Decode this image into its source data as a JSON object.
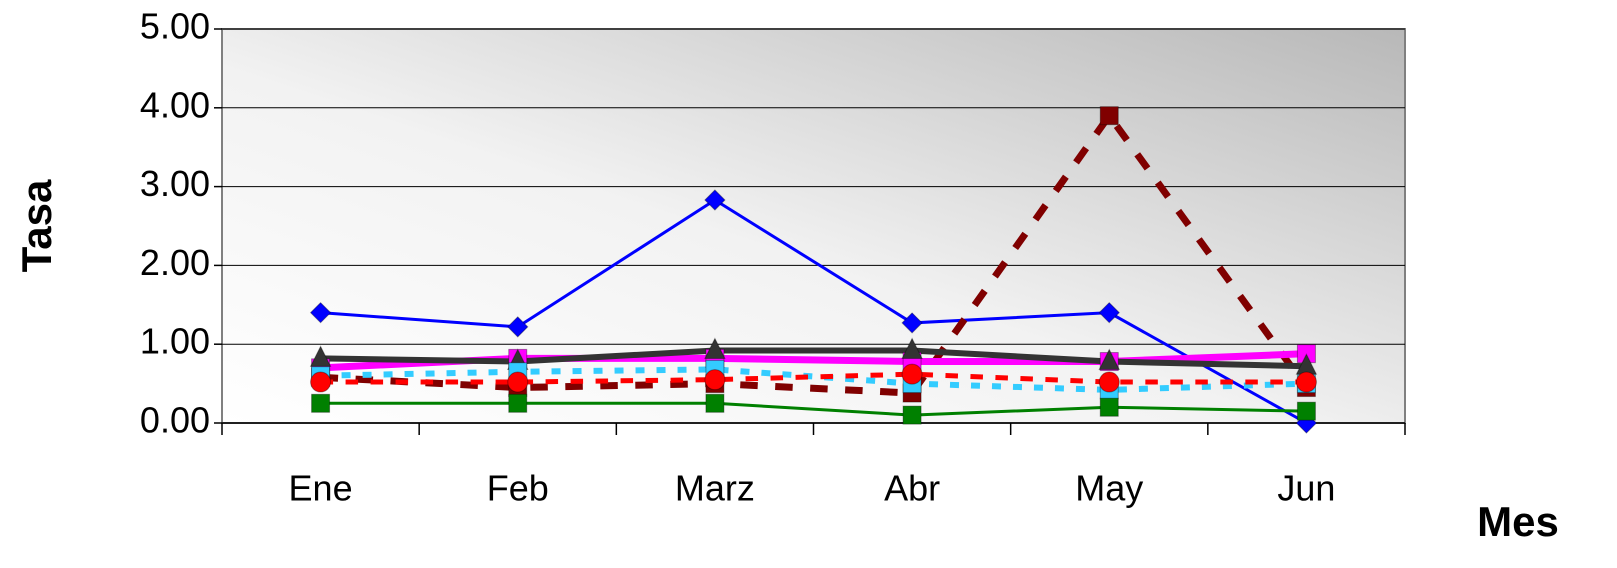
{
  "chart_data": {
    "type": "line",
    "x_label": "Mes",
    "y_label": "Tasa",
    "categories": [
      "Ene",
      "Feb",
      "Marz",
      "Abr",
      "May",
      "Jun"
    ],
    "ylim": [
      0,
      5
    ],
    "yticks": [
      {
        "value": 0,
        "label": "0.00"
      },
      {
        "value": 1,
        "label": "1.00"
      },
      {
        "value": 2,
        "label": "2.00"
      },
      {
        "value": 3,
        "label": "3.00"
      },
      {
        "value": 4,
        "label": "4.00"
      },
      {
        "value": 5,
        "label": "5.00"
      }
    ],
    "grid": true,
    "series": [
      {
        "color": "#0000ff",
        "marker": "diamond",
        "dash": "solid",
        "width": 3,
        "values": [
          1.4,
          1.22,
          2.83,
          1.27,
          1.4,
          0.0
        ]
      },
      {
        "color": "#800000",
        "marker": "square",
        "dash": "dashed",
        "width": 7,
        "values": [
          0.58,
          0.45,
          0.5,
          0.38,
          3.9,
          0.45
        ]
      },
      {
        "color": "#ff00ff",
        "marker": "square",
        "dash": "solid",
        "width": 7,
        "values": [
          0.7,
          0.82,
          0.82,
          0.78,
          0.78,
          0.88
        ]
      },
      {
        "color": "#333333",
        "marker": "triangle",
        "dash": "solid",
        "width": 6,
        "values": [
          0.82,
          0.78,
          0.92,
          0.92,
          0.78,
          0.72
        ]
      },
      {
        "color": "#33ccff",
        "marker": "square",
        "dash": "dotted",
        "width": 6,
        "values": [
          0.6,
          0.65,
          0.68,
          0.5,
          0.42,
          0.5
        ]
      },
      {
        "color": "#ff0000",
        "marker": "circle",
        "dash": "dashed",
        "width": 5,
        "values": [
          0.52,
          0.52,
          0.55,
          0.62,
          0.52,
          0.52
        ]
      },
      {
        "color": "#008000",
        "marker": "square",
        "dash": "solid",
        "width": 3,
        "values": [
          0.25,
          0.25,
          0.25,
          0.1,
          0.2,
          0.15
        ]
      }
    ]
  }
}
